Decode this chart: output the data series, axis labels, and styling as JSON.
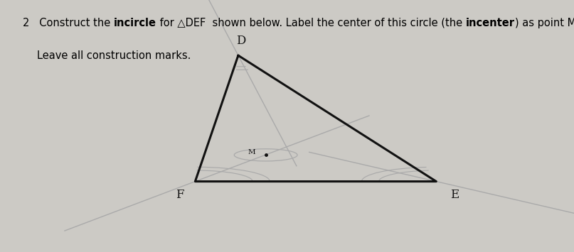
{
  "background_color": "#cccac5",
  "triangle": {
    "D": [
      0.415,
      0.78
    ],
    "E": [
      0.76,
      0.28
    ],
    "F": [
      0.34,
      0.28
    ]
  },
  "incenter": [
    0.463,
    0.385
  ],
  "inradius": 0.055,
  "triangle_color": "#111111",
  "construction_color": "#aaaaaa",
  "label_color": "#111111",
  "line1_normal": "2   Construct the ",
  "line1_bold1": "incircle",
  "line1_normal2": " for △DEF  shown below. Label the center of this circle (the ",
  "line1_bold2": "incenter",
  "line1_normal3": ") as point M.",
  "line2": "Leave all construction marks.",
  "text_fontsize": 10.5
}
